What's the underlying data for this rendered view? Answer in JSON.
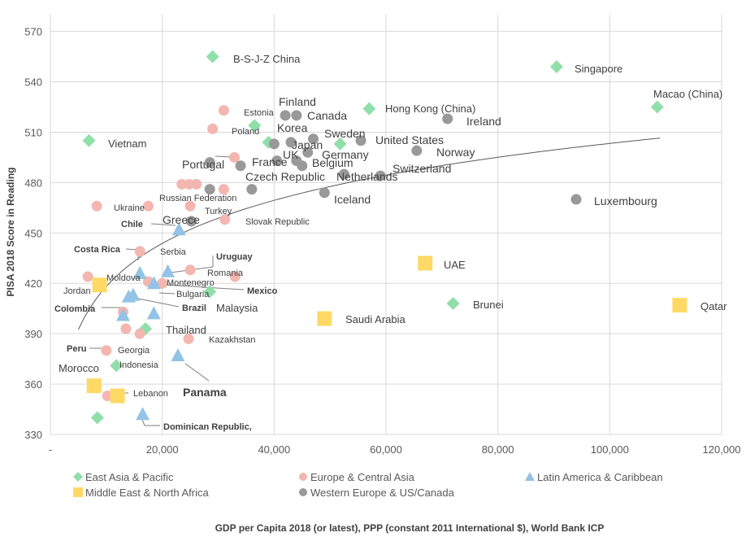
{
  "chart_data": {
    "type": "scatter",
    "title": "",
    "xlabel": "GDP per Capita 2018 (or latest), PPP (constant 2011 International $), World Bank ICP",
    "ylabel": "PISA 2018 Score in Reading",
    "xlim": [
      0,
      120000
    ],
    "ylim": [
      330,
      580
    ],
    "x_ticks": [
      "-",
      "20,000",
      "40,000",
      "60,000",
      "80,000",
      "100,000",
      "120,000"
    ],
    "y_ticks": [
      "330",
      "360",
      "390",
      "420",
      "450",
      "480",
      "510",
      "540",
      "570"
    ],
    "grid": "on",
    "legend_position": "bottom",
    "trendline": "logarithmic",
    "colors": {
      "east_asia": "#90dfaa",
      "europe": "#f4b6b0",
      "latam": "#93c3e6",
      "mena": "#ffd966",
      "west": "#999999",
      "highlight": "#c00000"
    },
    "series": [
      {
        "name": "East Asia & Pacific",
        "marker": "diamond",
        "color": "#90dfaa",
        "points": [
          {
            "label": "B-S-J-Z China",
            "x": 29000,
            "y": 555
          },
          {
            "label": "Singapore",
            "x": 90500,
            "y": 549
          },
          {
            "label": "Macao (China)",
            "x": 108500,
            "y": 525
          },
          {
            "label": "Hong Kong (China)",
            "x": 57000,
            "y": 524
          },
          {
            "label": "Korea",
            "x": 36500,
            "y": 514
          },
          {
            "label": "Vietnam",
            "x": 6900,
            "y": 505
          },
          {
            "label": "",
            "x": 39000,
            "y": 504
          },
          {
            "label": "Japan",
            "x": 51800,
            "y": 503
          },
          {
            "label": "Brunei",
            "x": 72000,
            "y": 408
          },
          {
            "label": "Malaysia",
            "x": 28500,
            "y": 415
          },
          {
            "label": "Thailand",
            "x": 17000,
            "y": 393
          },
          {
            "label": "Indonesia",
            "x": 11800,
            "y": 371
          },
          {
            "label": "",
            "x": 8400,
            "y": 340
          }
        ]
      },
      {
        "name": "Europe & Central Asia",
        "marker": "circle",
        "color": "#f4b6b0",
        "points": [
          {
            "label": "Estonia",
            "x": 31000,
            "y": 523
          },
          {
            "label": "Poland",
            "x": 29000,
            "y": 512
          },
          {
            "label": "",
            "x": 32900,
            "y": 495
          },
          {
            "label": "Russian Federation",
            "x": 24800,
            "y": 479
          },
          {
            "label": "",
            "x": 23500,
            "y": 479
          },
          {
            "label": "",
            "x": 26100,
            "y": 479
          },
          {
            "label": "",
            "x": 31000,
            "y": 476
          },
          {
            "label": "Ukraine",
            "x": 17500,
            "y": 466
          },
          {
            "label": "",
            "x": 8300,
            "y": 466
          },
          {
            "label": "Turkey",
            "x": 25000,
            "y": 466
          },
          {
            "label": "Slovak Republic",
            "x": 31200,
            "y": 458
          },
          {
            "label": "Serbia",
            "x": 16000,
            "y": 439
          },
          {
            "label": "Romania",
            "x": 25000,
            "y": 428
          },
          {
            "label": "",
            "x": 33000,
            "y": 424
          },
          {
            "label": "Moldova",
            "x": 6700,
            "y": 424
          },
          {
            "label": "Montenegro",
            "x": 17500,
            "y": 421
          },
          {
            "label": "Bulgaria",
            "x": 20000,
            "y": 420
          },
          {
            "label": "",
            "x": 13000,
            "y": 403
          },
          {
            "label": "Kazakhstan",
            "x": 24700,
            "y": 387
          },
          {
            "label": "",
            "x": 16000,
            "y": 390
          },
          {
            "label": "",
            "x": 13500,
            "y": 393
          },
          {
            "label": "Georgia",
            "x": 10000,
            "y": 380
          },
          {
            "label": "",
            "x": 10200,
            "y": 353
          }
        ]
      },
      {
        "name": "Latin America & Caribbean",
        "marker": "triangle",
        "color": "#93c3e6",
        "points": [
          {
            "label": "Chile",
            "x": 23000,
            "y": 452
          },
          {
            "label": "Costa Rica",
            "x": 16000,
            "y": 426
          },
          {
            "label": "Uruguay",
            "x": 21000,
            "y": 427
          },
          {
            "label": "Mexico",
            "x": 18500,
            "y": 420
          },
          {
            "label": "Brazil",
            "x": 14800,
            "y": 413
          },
          {
            "label": "Colombia",
            "x": 14000,
            "y": 412
          },
          {
            "label": "",
            "x": 18500,
            "y": 402
          },
          {
            "label": "Peru",
            "x": 13000,
            "y": 401
          },
          {
            "label": "Panama",
            "x": 22800,
            "y": 377
          },
          {
            "label": "Dominican Republic,",
            "x": 16500,
            "y": 342
          }
        ]
      },
      {
        "name": "Middle East & North Africa",
        "marker": "square",
        "color": "#ffd966",
        "points": [
          {
            "label": "UAE",
            "x": 67000,
            "y": 432
          },
          {
            "label": "Jordan",
            "x": 8800,
            "y": 419
          },
          {
            "label": "Qatar",
            "x": 112500,
            "y": 407
          },
          {
            "label": "Saudi Arabia",
            "x": 49000,
            "y": 399
          },
          {
            "label": "Morocco",
            "x": 7800,
            "y": 359
          },
          {
            "label": "Lebanon",
            "x": 12000,
            "y": 353
          }
        ]
      },
      {
        "name": "Western Europe & US/Canada",
        "marker": "circle",
        "color": "#999999",
        "points": [
          {
            "label": "Finland",
            "x": 42000,
            "y": 520
          },
          {
            "label": "Canada",
            "x": 44000,
            "y": 520
          },
          {
            "label": "Ireland",
            "x": 71000,
            "y": 518
          },
          {
            "label": "Sweden",
            "x": 47000,
            "y": 506
          },
          {
            "label": "United States",
            "x": 55500,
            "y": 505
          },
          {
            "label": "",
            "x": 40000,
            "y": 503
          },
          {
            "label": "UK",
            "x": 43000,
            "y": 504
          },
          {
            "label": "Norway",
            "x": 65500,
            "y": 499
          },
          {
            "label": "Germany",
            "x": 46000,
            "y": 498
          },
          {
            "label": "France",
            "x": 40500,
            "y": 493
          },
          {
            "label": "Belgium",
            "x": 44000,
            "y": 493
          },
          {
            "label": "Portugal",
            "x": 28500,
            "y": 492
          },
          {
            "label": "",
            "x": 34000,
            "y": 490
          },
          {
            "label": "Switzerland",
            "x": 59000,
            "y": 484
          },
          {
            "label": "Netherlands",
            "x": 52500,
            "y": 485
          },
          {
            "label": "Czech Republic",
            "x": 45000,
            "y": 490
          },
          {
            "label": "",
            "x": 36000,
            "y": 476
          },
          {
            "label": "",
            "x": 28500,
            "y": 476
          },
          {
            "label": "Iceland",
            "x": 49000,
            "y": 474
          },
          {
            "label": "Luxembourg",
            "x": 94000,
            "y": 470
          },
          {
            "label": "Greece",
            "x": 25200,
            "y": 457
          }
        ]
      }
    ],
    "callouts": [
      {
        "label": "B-S-J-Z China",
        "size": "sm"
      },
      {
        "label": "Singapore",
        "size": "sm"
      },
      {
        "label": "Macao (China)",
        "size": "sm"
      },
      {
        "label": "Hong Kong (China)",
        "size": "sm"
      },
      {
        "label": "Finland",
        "size": "md"
      },
      {
        "label": "Estonia",
        "size": "xs"
      },
      {
        "label": "Canada",
        "size": "md"
      },
      {
        "label": "Ireland",
        "size": "md"
      },
      {
        "label": "Korea",
        "size": "md"
      },
      {
        "label": "Poland",
        "size": "xs"
      },
      {
        "label": "Sweden",
        "size": "md"
      },
      {
        "label": "United States",
        "size": "md"
      },
      {
        "label": "Vietnam",
        "size": "sm"
      },
      {
        "label": "UK",
        "size": "md"
      },
      {
        "label": "Japan",
        "size": "md"
      },
      {
        "label": "Norway",
        "size": "md"
      },
      {
        "label": "France",
        "size": "md"
      },
      {
        "label": "Germany",
        "size": "md"
      },
      {
        "label": "Belgium",
        "size": "md"
      },
      {
        "label": "Portugal",
        "size": "md"
      },
      {
        "label": "Switzerland",
        "size": "md"
      },
      {
        "label": "Czech Republic",
        "size": "md"
      },
      {
        "label": "Netherlands",
        "size": "md"
      },
      {
        "label": "Russian Federation",
        "size": "xs"
      },
      {
        "label": "Iceland",
        "size": "md"
      },
      {
        "label": "Luxembourg",
        "size": "md"
      },
      {
        "label": "Ukraine",
        "size": "xs"
      },
      {
        "label": "Turkey",
        "size": "xs"
      },
      {
        "label": "Chile",
        "size": "xsb"
      },
      {
        "label": "Greece",
        "size": "md"
      },
      {
        "label": "Slovak Republic",
        "size": "xs"
      },
      {
        "label": "Costa Rica",
        "size": "xsb"
      },
      {
        "label": "Serbia",
        "size": "xs"
      },
      {
        "label": "Uruguay",
        "size": "xsb"
      },
      {
        "label": "UAE",
        "size": "sm"
      },
      {
        "label": "Moldova",
        "size": "xs"
      },
      {
        "label": "Romania",
        "size": "xs"
      },
      {
        "label": "Montenegro",
        "size": "xs"
      },
      {
        "label": "Jordan",
        "size": "xs"
      },
      {
        "label": "Mexico",
        "size": "xsb"
      },
      {
        "label": "Bulgaria",
        "size": "xs"
      },
      {
        "label": "Malaysia",
        "size": "sm"
      },
      {
        "label": "Colombia",
        "size": "xsb"
      },
      {
        "label": "Brazil",
        "size": "xsb"
      },
      {
        "label": "Brunei",
        "size": "sm"
      },
      {
        "label": "Qatar",
        "size": "sm"
      },
      {
        "label": "Saudi Arabia",
        "size": "sm"
      },
      {
        "label": "Thailand",
        "size": "sm"
      },
      {
        "label": "Kazakhstan",
        "size": "xs"
      },
      {
        "label": "Peru",
        "size": "xsb"
      },
      {
        "label": "Georgia",
        "size": "xs"
      },
      {
        "label": "Morocco",
        "size": "sm"
      },
      {
        "label": "Indonesia",
        "size": "xs"
      },
      {
        "label": "Panama",
        "size": "hl"
      },
      {
        "label": "Lebanon",
        "size": "xs"
      },
      {
        "label": "Dominican Republic,",
        "size": "xsb"
      }
    ]
  }
}
